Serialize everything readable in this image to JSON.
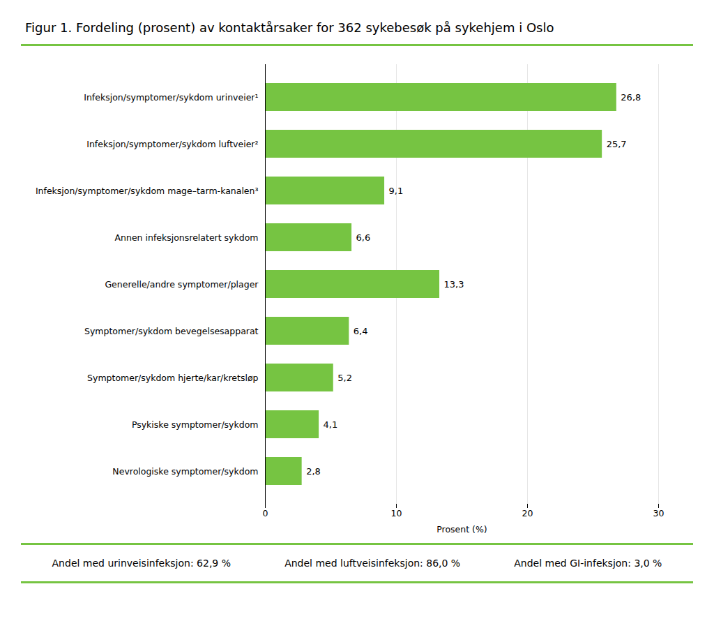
{
  "chart_data": {
    "type": "bar",
    "orientation": "horizontal",
    "title": "Figur 1. Fordeling (prosent) av kontaktårsaker for 362 sykebesøk på sykehjem i Oslo",
    "categories": [
      "Infeksjon/symptomer/sykdom urinveier¹",
      "Infeksjon/symptomer/sykdom luftveier²",
      "Infeksjon/symptomer/sykdom mage–tarm-kanalen³",
      "Annen infeksjonsrelatert sykdom",
      "Generelle/andre symptomer/plager",
      "Symptomer/sykdom bevegelsesapparat",
      "Symptomer/sykdom hjerte/kar/kretsløp",
      "Psykiske symptomer/sykdom",
      "Nevrologiske symptomer/sykdom"
    ],
    "values": [
      26.8,
      25.7,
      9.1,
      6.6,
      13.3,
      6.4,
      5.2,
      4.1,
      2.8
    ],
    "value_labels": [
      "26,8",
      "25,7",
      "9,1",
      "6,6",
      "13,3",
      "6,4",
      "5,2",
      "4,1",
      "2,8"
    ],
    "data_labels": true,
    "color": "#76c442",
    "xlim": [
      0,
      30
    ],
    "xticks": [
      0,
      10,
      20,
      30
    ],
    "xlabel": "Prosent (%)",
    "grid": true,
    "annotations": [
      "Andel med urinveisinfeksjon: 62,9 %",
      "Andel med luftveisinfeksjon: 86,0 %",
      "Andel med GI-infeksjon: 3,0 %"
    ]
  }
}
